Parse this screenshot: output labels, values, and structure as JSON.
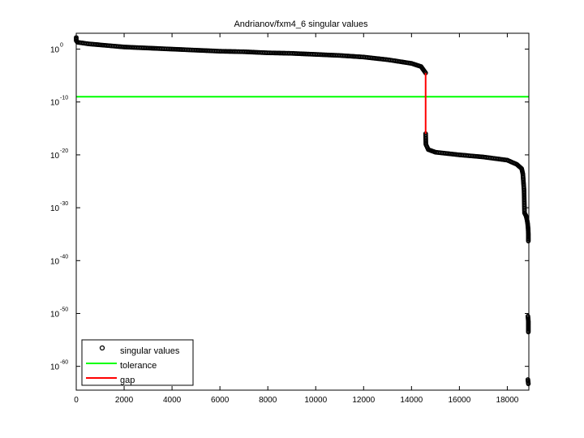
{
  "chart_data": {
    "type": "scatter",
    "title": "Andrianov/fxm4_6 singular values",
    "xlabel": "",
    "ylabel": "",
    "xlim": [
      0,
      18900
    ],
    "ylim_log10": [
      -64.5,
      3
    ],
    "y_scale": "log",
    "x_ticks": [
      0,
      2000,
      4000,
      6000,
      8000,
      10000,
      12000,
      14000,
      16000,
      18000
    ],
    "x_tick_labels": [
      "0",
      "2000",
      "4000",
      "6000",
      "8000",
      "10000",
      "12000",
      "14000",
      "16000",
      "18000"
    ],
    "y_ticks_log10": [
      0,
      -10,
      -20,
      -30,
      -40,
      -50,
      -60
    ],
    "y_tick_base": "10",
    "y_tick_exponents": [
      "0",
      "-10",
      "-20",
      "-30",
      "-40",
      "-50",
      "-60"
    ],
    "legend_position": "bottom-left",
    "grid": false,
    "series": [
      {
        "name": "singular values",
        "marker": "circle-open",
        "color": "#000000",
        "points_log10": [
          [
            0,
            2.2
          ],
          [
            0,
            1.6
          ],
          [
            50,
            1.3
          ],
          [
            500,
            1.0
          ],
          [
            1000,
            0.8
          ],
          [
            2000,
            0.4
          ],
          [
            3000,
            0.2
          ],
          [
            4000,
            0.0
          ],
          [
            5000,
            -0.2
          ],
          [
            6000,
            -0.4
          ],
          [
            7000,
            -0.5
          ],
          [
            8000,
            -0.7
          ],
          [
            9000,
            -0.8
          ],
          [
            10000,
            -1.0
          ],
          [
            11000,
            -1.2
          ],
          [
            12000,
            -1.5
          ],
          [
            13000,
            -2.0
          ],
          [
            14000,
            -2.7
          ],
          [
            14400,
            -3.3
          ],
          [
            14590,
            -4.5
          ],
          [
            14590,
            -16.0
          ],
          [
            14600,
            -18.0
          ],
          [
            14700,
            -19.0
          ],
          [
            15000,
            -19.5
          ],
          [
            16000,
            -20.0
          ],
          [
            17000,
            -20.4
          ],
          [
            18000,
            -21.0
          ],
          [
            18400,
            -21.8
          ],
          [
            18600,
            -22.6
          ],
          [
            18650,
            -23.6
          ],
          [
            18700,
            -26.7
          ],
          [
            18720,
            -31.0
          ],
          [
            18780,
            -31.5
          ],
          [
            18820,
            -32.2
          ],
          [
            18850,
            -33.0
          ],
          [
            18870,
            -34.0
          ],
          [
            18880,
            -35.0
          ],
          [
            18880,
            -36.3
          ],
          [
            18860,
            -50.5
          ],
          [
            18880,
            -51.5
          ],
          [
            18880,
            -52.5
          ],
          [
            18880,
            -53.5
          ],
          [
            18860,
            -62.5
          ],
          [
            18880,
            -63.3
          ]
        ]
      },
      {
        "name": "tolerance",
        "color": "#00ff00",
        "y_log10": -9.0
      },
      {
        "name": "gap",
        "color": "#ff0000",
        "x": 14590,
        "y_log10_range": [
          -4.5,
          -16.0
        ]
      }
    ]
  }
}
